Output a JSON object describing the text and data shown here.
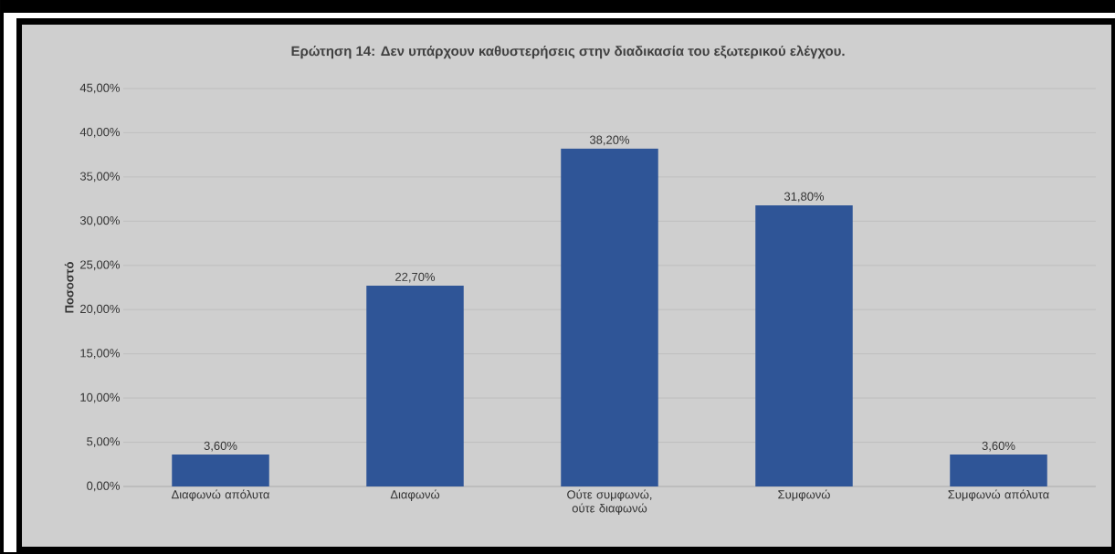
{
  "chart_data": {
    "type": "bar",
    "title": "Ερώτηση 14: Δεν υπάρχουν καθυστερήσεις στην διαδικασία του εξωτερικού ελέγχου.",
    "ylabel": "Ποσοστό",
    "categories": [
      "Διαφωνώ απόλυτα",
      "Διαφωνώ",
      "Ούτε συμφωνώ, ούτε διαφωνώ",
      "Συμφωνώ",
      "Συμφωνώ απόλυτα"
    ],
    "values": [
      3.6,
      22.7,
      38.2,
      31.8,
      3.6
    ],
    "value_labels": [
      "3,60%",
      "22,70%",
      "38,20%",
      "31,80%",
      "3,60%"
    ],
    "color": "#2f5597",
    "ylim": [
      0,
      45
    ],
    "yticks": [
      {
        "value": 0,
        "label": "0,00%"
      },
      {
        "value": 5,
        "label": "5,00%"
      },
      {
        "value": 10,
        "label": "10,00%"
      },
      {
        "value": 15,
        "label": "15,00%"
      },
      {
        "value": 20,
        "label": "20,00%"
      },
      {
        "value": 25,
        "label": "25,00%"
      },
      {
        "value": 30,
        "label": "30,00%"
      },
      {
        "value": 35,
        "label": "35,00%"
      },
      {
        "value": 40,
        "label": "40,00%"
      },
      {
        "value": 45,
        "label": "45,00%"
      }
    ],
    "grid": "y"
  }
}
